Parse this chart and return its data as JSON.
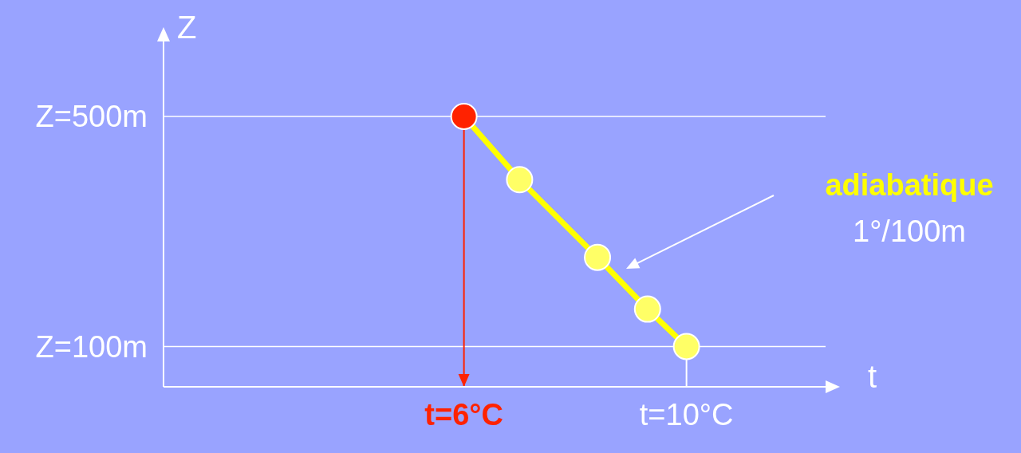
{
  "chart_data": {
    "type": "line",
    "xlabel": "t",
    "ylabel": "Z",
    "x": [
      6,
      7,
      8.4,
      9.3,
      10
    ],
    "series": [
      {
        "color": "#ffff00",
        "colors": [
          "#ff2200",
          "#ffff66",
          "#ffff66",
          "#ffff66",
          "#ffff66"
        ],
        "values": [
          500,
          390,
          255,
          165,
          100
        ]
      }
    ],
    "xlim": [
      0.6,
      12.5
    ],
    "ylim": [
      30,
      640
    ],
    "xticks": [
      {
        "value": 6,
        "label": "t=6°C"
      },
      {
        "value": 10,
        "label": "t=10°C"
      }
    ],
    "yticks": [
      {
        "value": 100,
        "label": "Z=100m"
      },
      {
        "value": 500,
        "label": "Z=500m"
      }
    ],
    "grid": "y",
    "marker": "circle",
    "line_style": "solid",
    "legend": false,
    "ref_lines": [
      {
        "axis": "x",
        "value": 6,
        "color": "#ff2200"
      },
      {
        "axis": "x",
        "value": 10,
        "color": "#ffffff"
      }
    ],
    "annotations": [
      "adiabatique",
      "1°/100m"
    ]
  }
}
